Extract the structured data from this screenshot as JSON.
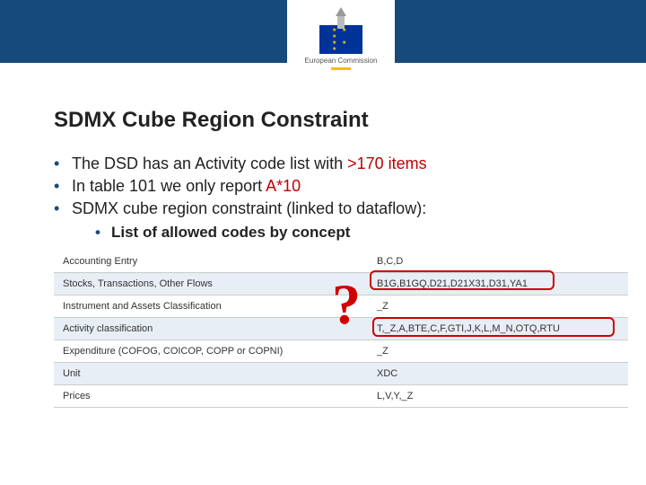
{
  "header": {
    "logo_label": "European\nCommission"
  },
  "title": "SDMX Cube Region Constraint",
  "bullets": [
    {
      "pre": "The DSD has an Activity code list with ",
      "red": ">170 items",
      "post": ""
    },
    {
      "pre": "In table 101 we only report ",
      "red": "A*10",
      "post": ""
    },
    {
      "pre": "SDMX cube region constraint (linked to dataflow):",
      "red": "",
      "post": ""
    }
  ],
  "sub_bullet": "List of allowed codes by concept",
  "qmark": "?",
  "table": {
    "rows": [
      {
        "label": "Accounting Entry",
        "codes": "B,C,D",
        "shade": false
      },
      {
        "label": "Stocks, Transactions, Other Flows",
        "codes": "B1G,B1GQ,D21,D21X31,D31,YA1",
        "shade": true
      },
      {
        "label": "Instrument and Assets Classification",
        "codes": "_Z",
        "shade": false
      },
      {
        "label": "Activity classification",
        "codes": "T,_Z,A,BTE,C,F,GTI,J,K,L,M_N,OTQ,RTU",
        "shade": true
      },
      {
        "label": "Expenditure (COFOG, COICOP, COPP or COPNI)",
        "codes": "_Z",
        "shade": false
      },
      {
        "label": "Unit",
        "codes": "XDC",
        "shade": true
      },
      {
        "label": "Prices",
        "codes": "L,V,Y,_Z",
        "shade": false
      }
    ]
  }
}
